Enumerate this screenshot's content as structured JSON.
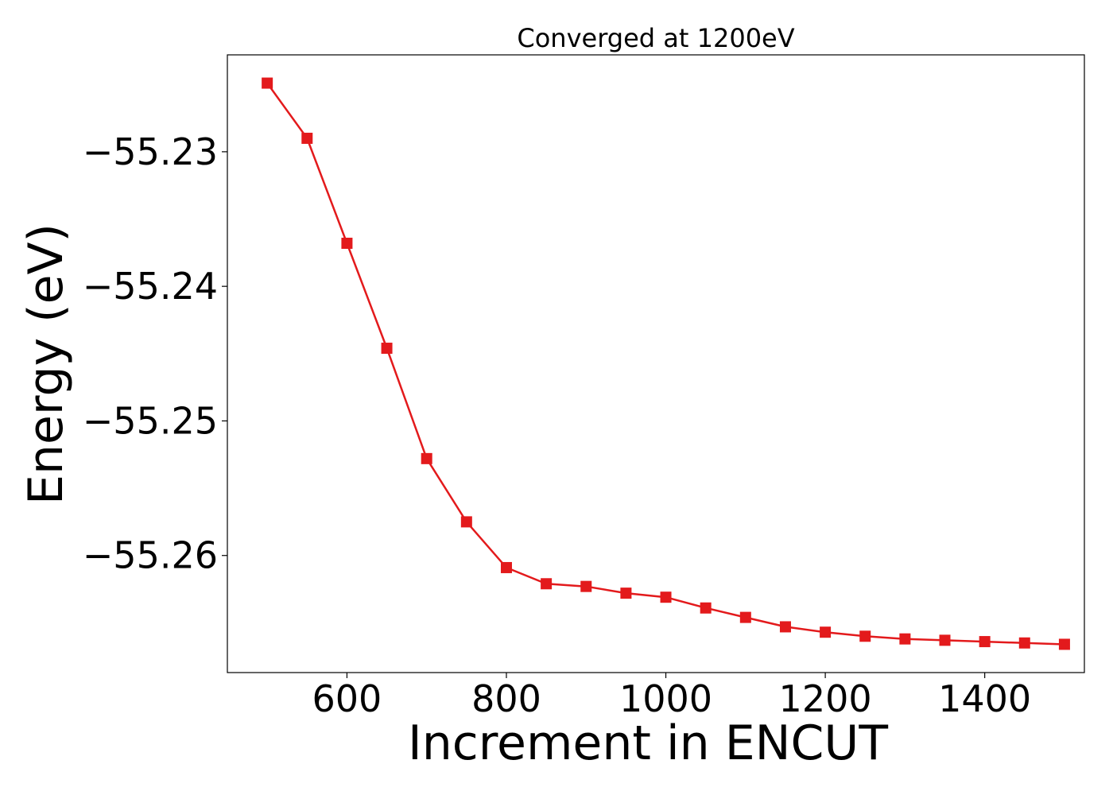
{
  "chart_data": {
    "type": "line",
    "title": "Converged at 1200eV",
    "xlabel": "Increment in ENCUT",
    "ylabel": "Energy (eV)",
    "xlim": [
      450,
      1525
    ],
    "ylim": [
      -55.2687,
      -55.2228
    ],
    "x_ticks": [
      600,
      800,
      1000,
      1200,
      1400
    ],
    "y_ticks": [
      -55.23,
      -55.24,
      -55.25,
      -55.26
    ],
    "x_tick_labels": [
      "600",
      "800",
      "1000",
      "1200",
      "1400"
    ],
    "y_tick_labels": [
      "−55.23",
      "−55.24",
      "−55.25",
      "−55.26"
    ],
    "grid": false,
    "series": [
      {
        "color": "#e31a1c",
        "marker": "square",
        "x": [
          500,
          550,
          600,
          650,
          700,
          750,
          800,
          850,
          900,
          950,
          1000,
          1050,
          1100,
          1150,
          1200,
          1250,
          1300,
          1350,
          1400,
          1450,
          1500
        ],
        "y": [
          -55.2249,
          -55.229,
          -55.2368,
          -55.2446,
          -55.2528,
          -55.2575,
          -55.2609,
          -55.2621,
          -55.2623,
          -55.2628,
          -55.2631,
          -55.2639,
          -55.2646,
          -55.2653,
          -55.2657,
          -55.266,
          -55.2662,
          -55.2663,
          -55.2664,
          -55.2665,
          -55.2666
        ]
      }
    ]
  }
}
